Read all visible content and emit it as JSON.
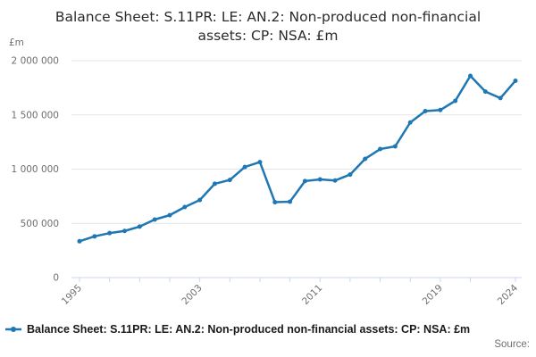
{
  "chart_data": {
    "type": "line",
    "title": "Balance Sheet: S.11PR: LE: AN.2: Non-produced non-financial assets: CP: NSA: £m",
    "unit_label": "£m",
    "x": [
      1995,
      1996,
      1997,
      1998,
      1999,
      2000,
      2001,
      2002,
      2003,
      2004,
      2005,
      2006,
      2007,
      2008,
      2009,
      2010,
      2011,
      2012,
      2013,
      2014,
      2015,
      2016,
      2017,
      2018,
      2019,
      2020,
      2021,
      2022,
      2023,
      2024
    ],
    "series": [
      {
        "name": "Balance Sheet: S.11PR: LE: AN.2: Non-produced non-financial assets: CP: NSA: £m",
        "color": "#1f77b4",
        "values": [
          335000,
          380000,
          410000,
          430000,
          470000,
          535000,
          575000,
          650000,
          715000,
          865000,
          900000,
          1020000,
          1065000,
          695000,
          700000,
          890000,
          905000,
          895000,
          950000,
          1095000,
          1185000,
          1210000,
          1430000,
          1535000,
          1545000,
          1630000,
          1860000,
          1715000,
          1655000,
          1815000
        ]
      }
    ],
    "ylim": [
      0,
      2000000
    ],
    "yticks": [
      0,
      500000,
      1000000,
      1500000,
      2000000
    ],
    "ytick_labels": [
      "0",
      "500 000",
      "1 000 000",
      "1 500 000",
      "2 000 000"
    ],
    "xticks": [
      1995,
      1997,
      1999,
      2001,
      2003,
      2005,
      2007,
      2009,
      2011,
      2013,
      2015,
      2017,
      2019,
      2021,
      2024
    ],
    "xtick_label_years": [
      1995,
      2003,
      2011,
      2019,
      2024
    ],
    "xtick_labels": [
      "1995",
      "2003",
      "2011",
      "2019",
      "2024"
    ],
    "grid": "horizontal-only",
    "legend_position": "bottom-left"
  },
  "footer": {
    "source_label": "Source:"
  },
  "colors": {
    "line": "#1f77b4",
    "axis": "#ccd6eb",
    "grid": "#e6e6e6",
    "tick_text": "#6e6e6e"
  }
}
